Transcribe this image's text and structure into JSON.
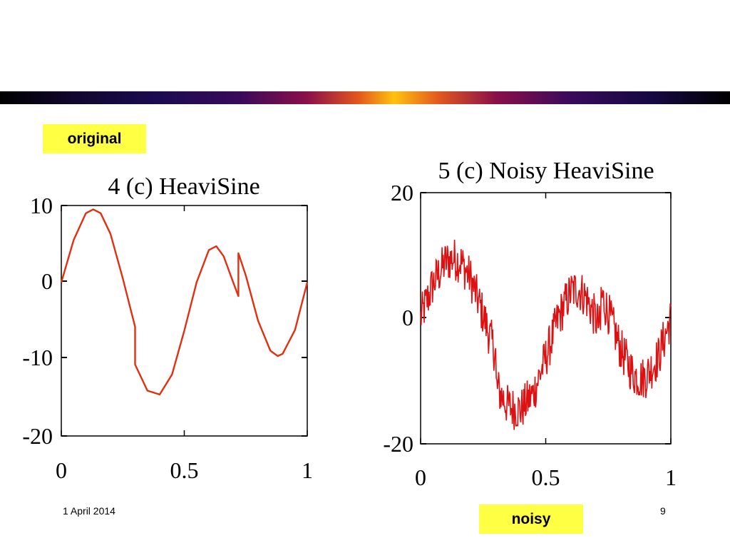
{
  "slide": {
    "original_label": "original",
    "noisy_label": "noisy",
    "date": "1 April 2014",
    "page_number": "9",
    "band_colors": [
      "#000000",
      "#1c0b52",
      "#8a0f4a",
      "#ffc20e",
      "#8a0f4a",
      "#1c0b52",
      "#000000"
    ],
    "label_bg": "#ffff44"
  },
  "chart_data": [
    {
      "type": "line",
      "title": "4 (c) HeaviSine",
      "xlabel": "",
      "ylabel": "",
      "xlim": [
        0,
        1
      ],
      "ylim": [
        -20,
        10
      ],
      "xticks": [
        "0",
        "0.5",
        "1"
      ],
      "yticks": [
        "10",
        "0",
        "-10",
        "-20"
      ],
      "noisy": false,
      "color": "#e03010",
      "series": [
        {
          "x": [
            0,
            0.05,
            0.1,
            0.13,
            0.16,
            0.2,
            0.25,
            0.3,
            0.3,
            0.35,
            0.4,
            0.45,
            0.5,
            0.55,
            0.6,
            0.63,
            0.66,
            0.7,
            0.72,
            0.72,
            0.75,
            0.8,
            0.85,
            0.88,
            0.9,
            0.95,
            1.0
          ],
          "y": [
            0,
            5.5,
            9.0,
            9.5,
            9.0,
            6.3,
            0.5,
            -5.8,
            -10.7,
            -14.1,
            -14.6,
            -12.0,
            -6.3,
            0.0,
            4.2,
            4.7,
            3.4,
            -0.1,
            -1.8,
            3.8,
            0.9,
            -5.0,
            -8.9,
            -9.6,
            -9.3,
            -6.2,
            0.0
          ]
        }
      ]
    },
    {
      "type": "line",
      "title": "5 (c) Noisy HeaviSine",
      "xlabel": "",
      "ylabel": "",
      "xlim": [
        0,
        1
      ],
      "ylim": [
        -20,
        20
      ],
      "xticks": [
        "0",
        "0.5",
        "1"
      ],
      "yticks": [
        "20",
        "0",
        "-20"
      ],
      "noisy": true,
      "color": "#dd1111",
      "series": [
        {
          "x": [
            0,
            0.05,
            0.1,
            0.13,
            0.16,
            0.2,
            0.25,
            0.3,
            0.3,
            0.35,
            0.4,
            0.45,
            0.5,
            0.55,
            0.6,
            0.63,
            0.66,
            0.7,
            0.72,
            0.72,
            0.75,
            0.8,
            0.85,
            0.88,
            0.9,
            0.95,
            1.0
          ],
          "y": [
            0,
            5.5,
            9.0,
            9.5,
            9.0,
            6.3,
            0.5,
            -5.8,
            -10.7,
            -14.1,
            -14.6,
            -12.0,
            -6.3,
            0.0,
            4.2,
            4.7,
            3.4,
            -0.1,
            -1.8,
            3.8,
            0.9,
            -5.0,
            -8.9,
            -9.6,
            -9.3,
            -6.2,
            0.0
          ]
        }
      ]
    }
  ]
}
